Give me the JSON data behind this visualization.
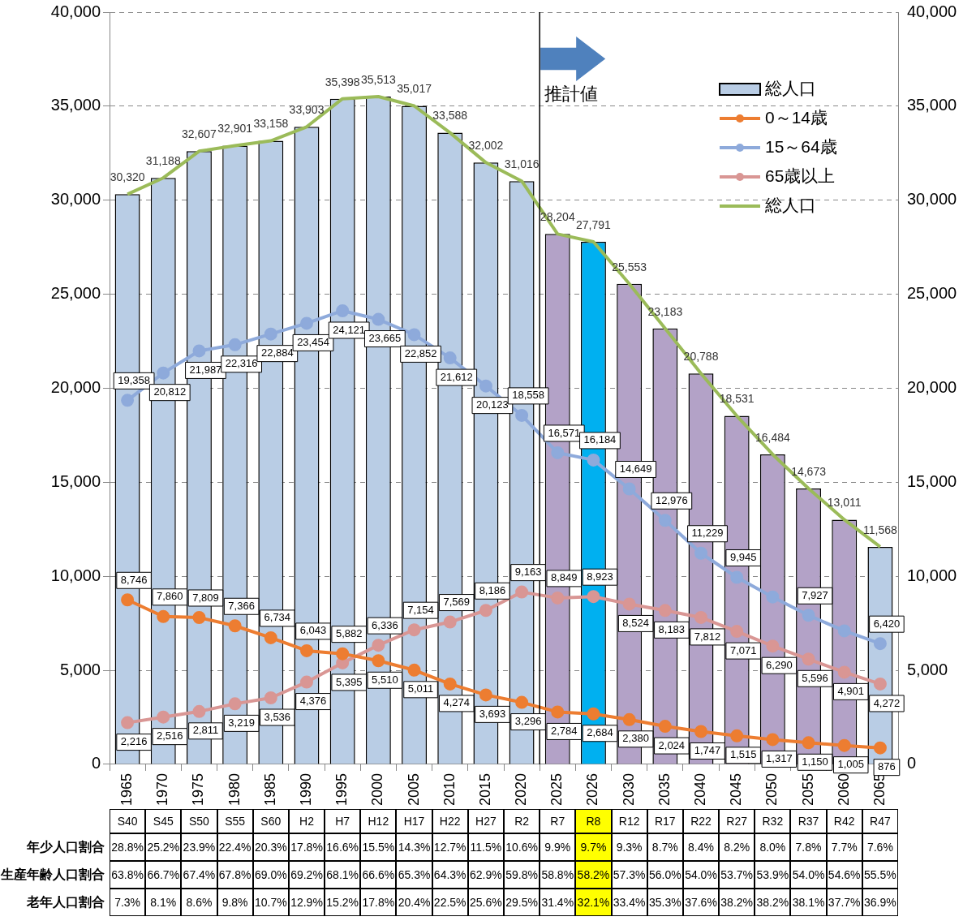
{
  "chart_data": [
    {
      "type": "bar",
      "categories": [
        "1965",
        "1970",
        "1975",
        "1980",
        "1985",
        "1990",
        "1995",
        "2000",
        "2005",
        "2010",
        "2015",
        "2020",
        "2025",
        "2026",
        "2030",
        "2035",
        "2040",
        "2045",
        "2050",
        "2055",
        "2060",
        "2065"
      ],
      "ylim": [
        0,
        40000
      ],
      "yticks": [
        {
          "value": 0,
          "label": "0"
        },
        {
          "value": 5000,
          "label": "5,000"
        },
        {
          "value": 10000,
          "label": "10,000"
        },
        {
          "value": 15000,
          "label": "15,000"
        },
        {
          "value": 20000,
          "label": "20,000"
        },
        {
          "value": 25000,
          "label": "25,000"
        },
        {
          "value": 30000,
          "label": "30,000"
        },
        {
          "value": 35000,
          "label": "35,000"
        },
        {
          "value": 40000,
          "label": "40,000"
        }
      ],
      "y2lim": [
        0,
        40000
      ],
      "y2ticks": [
        {
          "value": 0,
          "label": "0"
        },
        {
          "value": 5000,
          "label": "5,000"
        },
        {
          "value": 10000,
          "label": "10,000"
        },
        {
          "value": 15000,
          "label": "15,000"
        },
        {
          "value": 20000,
          "label": "20,000"
        },
        {
          "value": 25000,
          "label": "25,000"
        },
        {
          "value": 30000,
          "label": "30,000"
        },
        {
          "value": 35000,
          "label": "35,000"
        },
        {
          "value": 40000,
          "label": "40,000"
        }
      ],
      "grid": "y",
      "legend": "top right",
      "ref_lines": [
        {
          "axis": "x",
          "value": "2025",
          "label": "推計値"
        }
      ],
      "series": [
        {
          "name": "総人口",
          "type": "bar",
          "color": "#b9cde5",
          "colors": [
            "#b9cde5",
            "#b9cde5",
            "#b9cde5",
            "#b9cde5",
            "#b9cde5",
            "#b9cde5",
            "#b9cde5",
            "#b9cde5",
            "#b9cde5",
            "#b9cde5",
            "#b9cde5",
            "#b9cde5",
            "#b3a2c7",
            "#00b0f0",
            "#b3a2c7",
            "#b3a2c7",
            "#b3a2c7",
            "#b3a2c7",
            "#b3a2c7",
            "#b3a2c7",
            "#b3a2c7",
            "#b9cde5"
          ],
          "values": [
            30320,
            31188,
            32607,
            32901,
            33158,
            33903,
            35398,
            35513,
            35017,
            33588,
            32002,
            31016,
            28204,
            27791,
            25553,
            23183,
            20788,
            18531,
            16484,
            14673,
            13011,
            11568
          ]
        },
        {
          "name": "0～14歳",
          "type": "line",
          "color": "#ed7d31",
          "marker": "circle",
          "values": [
            8746,
            7860,
            7809,
            7366,
            6734,
            6043,
            5882,
            5510,
            5011,
            4274,
            3693,
            3296,
            2784,
            2684,
            2380,
            2024,
            1747,
            1515,
            1317,
            1150,
            1005,
            876
          ],
          "value_labels": [
            "8,746",
            "7,860",
            "7,809",
            "7,366",
            "6,734",
            "6,043",
            "5,882",
            "5,510",
            "5,011",
            "4,274",
            "3,693",
            "3,296",
            "2,784",
            "2,684",
            "2,380",
            "2,024",
            "1,747",
            "1,515",
            "1,317",
            "1,150",
            "1,005",
            "876"
          ]
        },
        {
          "name": "15～64歳",
          "type": "line",
          "color": "#8eaadb",
          "marker": "circle",
          "values": [
            19358,
            20812,
            21987,
            22316,
            22884,
            23454,
            24121,
            23665,
            22852,
            21612,
            20123,
            18558,
            16571,
            16184,
            14649,
            12976,
            11229,
            9945,
            8900,
            7927,
            7100,
            6420
          ],
          "value_labels": [
            "19,358",
            "20,812",
            "21,987",
            "22,316",
            "22,884",
            "23,454",
            "24,121",
            "23,665",
            "22,852",
            "21,612",
            "20,123",
            "18,558",
            "16,571",
            "16,184",
            "14,649",
            "12,976",
            "11,229",
            "9,945",
            null,
            "7,927",
            null,
            "6,420"
          ]
        },
        {
          "name": "65歳以上",
          "type": "line",
          "color": "#d99694",
          "marker": "circle",
          "values": [
            2216,
            2516,
            2811,
            3219,
            3536,
            4376,
            5395,
            6336,
            7154,
            7569,
            8186,
            9163,
            8849,
            8923,
            8524,
            8183,
            7812,
            7071,
            6290,
            5596,
            4901,
            4272
          ],
          "value_labels": [
            "2,216",
            "2,516",
            "2,811",
            "3,219",
            "3,536",
            "4,376",
            "5,395",
            "6,336",
            "7,154",
            "7,569",
            "8,186",
            "9,163",
            "8,849",
            "8,923",
            "8,524",
            "8,183",
            "7,812",
            "7,071",
            "6,290",
            "5,596",
            "4,901",
            "4,272"
          ]
        },
        {
          "name": "総人口",
          "type": "line",
          "color": "#9bbb59",
          "marker": "none",
          "values": [
            30320,
            31188,
            32607,
            32901,
            33158,
            33903,
            35398,
            35513,
            35017,
            33588,
            32002,
            31016,
            28204,
            27791,
            25553,
            23183,
            20788,
            18531,
            16484,
            14673,
            13011,
            11568
          ],
          "value_labels": [
            "30,320",
            "31,188",
            "32,607",
            "32,901",
            "33,158",
            "33,903",
            "35,398",
            "35,513",
            "35,017",
            "33,588",
            "32,002",
            "31,016",
            "28,204",
            "27,791",
            "25,553",
            "23,183",
            "20,788",
            "18,531",
            "16,484",
            "14,673",
            "13,011",
            "11,568"
          ]
        }
      ]
    },
    {
      "type": "heatmap",
      "categories": [
        "S40",
        "S45",
        "S50",
        "S55",
        "S60",
        "H2",
        "H7",
        "H12",
        "H17",
        "H22",
        "H27",
        "R2",
        "R7",
        "R8",
        "R12",
        "R17",
        "R22",
        "R27",
        "R32",
        "R37",
        "R42",
        "R47"
      ],
      "y_categories": [
        "年少人口割合",
        "生産年齢人口割合",
        "老年人口割合"
      ],
      "cells": [
        [
          28.8,
          25.2,
          23.9,
          22.4,
          20.3,
          17.8,
          16.6,
          15.5,
          14.3,
          12.7,
          11.5,
          10.6,
          9.9,
          9.7,
          9.3,
          8.7,
          8.4,
          8.2,
          8.0,
          7.8,
          7.7,
          7.6
        ],
        [
          63.8,
          66.7,
          67.4,
          67.8,
          69.0,
          69.2,
          68.1,
          66.6,
          65.3,
          64.3,
          62.9,
          59.8,
          58.8,
          58.2,
          57.3,
          56.0,
          54.0,
          53.7,
          53.9,
          54.0,
          54.6,
          55.5
        ],
        [
          7.3,
          8.1,
          8.6,
          9.8,
          10.7,
          12.9,
          15.2,
          17.8,
          20.4,
          22.5,
          25.6,
          29.5,
          31.4,
          32.1,
          33.4,
          35.3,
          37.6,
          38.2,
          38.2,
          38.1,
          37.7,
          36.9
        ]
      ],
      "cell_labels": [
        [
          "28.8%",
          "25.2%",
          "23.9%",
          "22.4%",
          "20.3%",
          "17.8%",
          "16.6%",
          "15.5%",
          "14.3%",
          "12.7%",
          "11.5%",
          "10.6%",
          "9.9%",
          "9.7%",
          "9.3%",
          "8.7%",
          "8.4%",
          "8.2%",
          "8.0%",
          "7.8%",
          "7.7%",
          "7.6%"
        ],
        [
          "63.8%",
          "66.7%",
          "67.4%",
          "67.8%",
          "69.0%",
          "69.2%",
          "68.1%",
          "66.6%",
          "65.3%",
          "64.3%",
          "62.9%",
          "59.8%",
          "58.8%",
          "58.2%",
          "57.3%",
          "56.0%",
          "54.0%",
          "53.7%",
          "53.9%",
          "54.0%",
          "54.6%",
          "55.5%"
        ],
        [
          "7.3%",
          "8.1%",
          "8.6%",
          "9.8%",
          "10.7%",
          "12.9%",
          "15.2%",
          "17.8%",
          "20.4%",
          "22.5%",
          "25.6%",
          "29.5%",
          "31.4%",
          "32.1%",
          "33.4%",
          "35.3%",
          "37.6%",
          "38.2%",
          "38.2%",
          "38.1%",
          "37.7%",
          "36.9%"
        ]
      ],
      "bands": [
        {
          "axis": "x",
          "from": "R8",
          "to": "R8",
          "color": "#ffff00"
        }
      ]
    }
  ]
}
